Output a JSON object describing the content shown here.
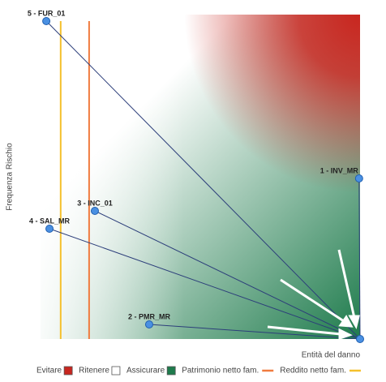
{
  "chart_data": {
    "type": "scatter",
    "x_label": "Entità del danno",
    "y_label": "Frequenza Rischio",
    "xlim": [
      0,
      100
    ],
    "ylim": [
      0,
      100
    ],
    "zones": [
      {
        "name": "Evitare",
        "color": "#c8261f"
      },
      {
        "name": "Ritenere",
        "color": "#ffffff"
      },
      {
        "name": "Assicurare",
        "color": "#1e7b4c"
      }
    ],
    "reference_lines": [
      {
        "name": "Patrimonio netto fam.",
        "color": "#f07b3f",
        "x": 15.2
      },
      {
        "name": "Reddito netto fam.",
        "color": "#f5c02c",
        "x": 6.3
      }
    ],
    "points": [
      {
        "label": "5 - FUR_01",
        "x": 1.8,
        "y": 98
      },
      {
        "label": "1 - INV_MR",
        "x": 99.7,
        "y": 49.5
      },
      {
        "label": "3 - INC_01",
        "x": 17,
        "y": 39.5
      },
      {
        "label": "4 - SAL_MR",
        "x": 2.8,
        "y": 34
      },
      {
        "label": "2 - PMR_MR",
        "x": 34,
        "y": 4.5
      }
    ],
    "convergence_point": {
      "x": 100,
      "y": 0
    },
    "point_color": "#4a90e2",
    "connector_color": "#2c3e7a"
  }
}
